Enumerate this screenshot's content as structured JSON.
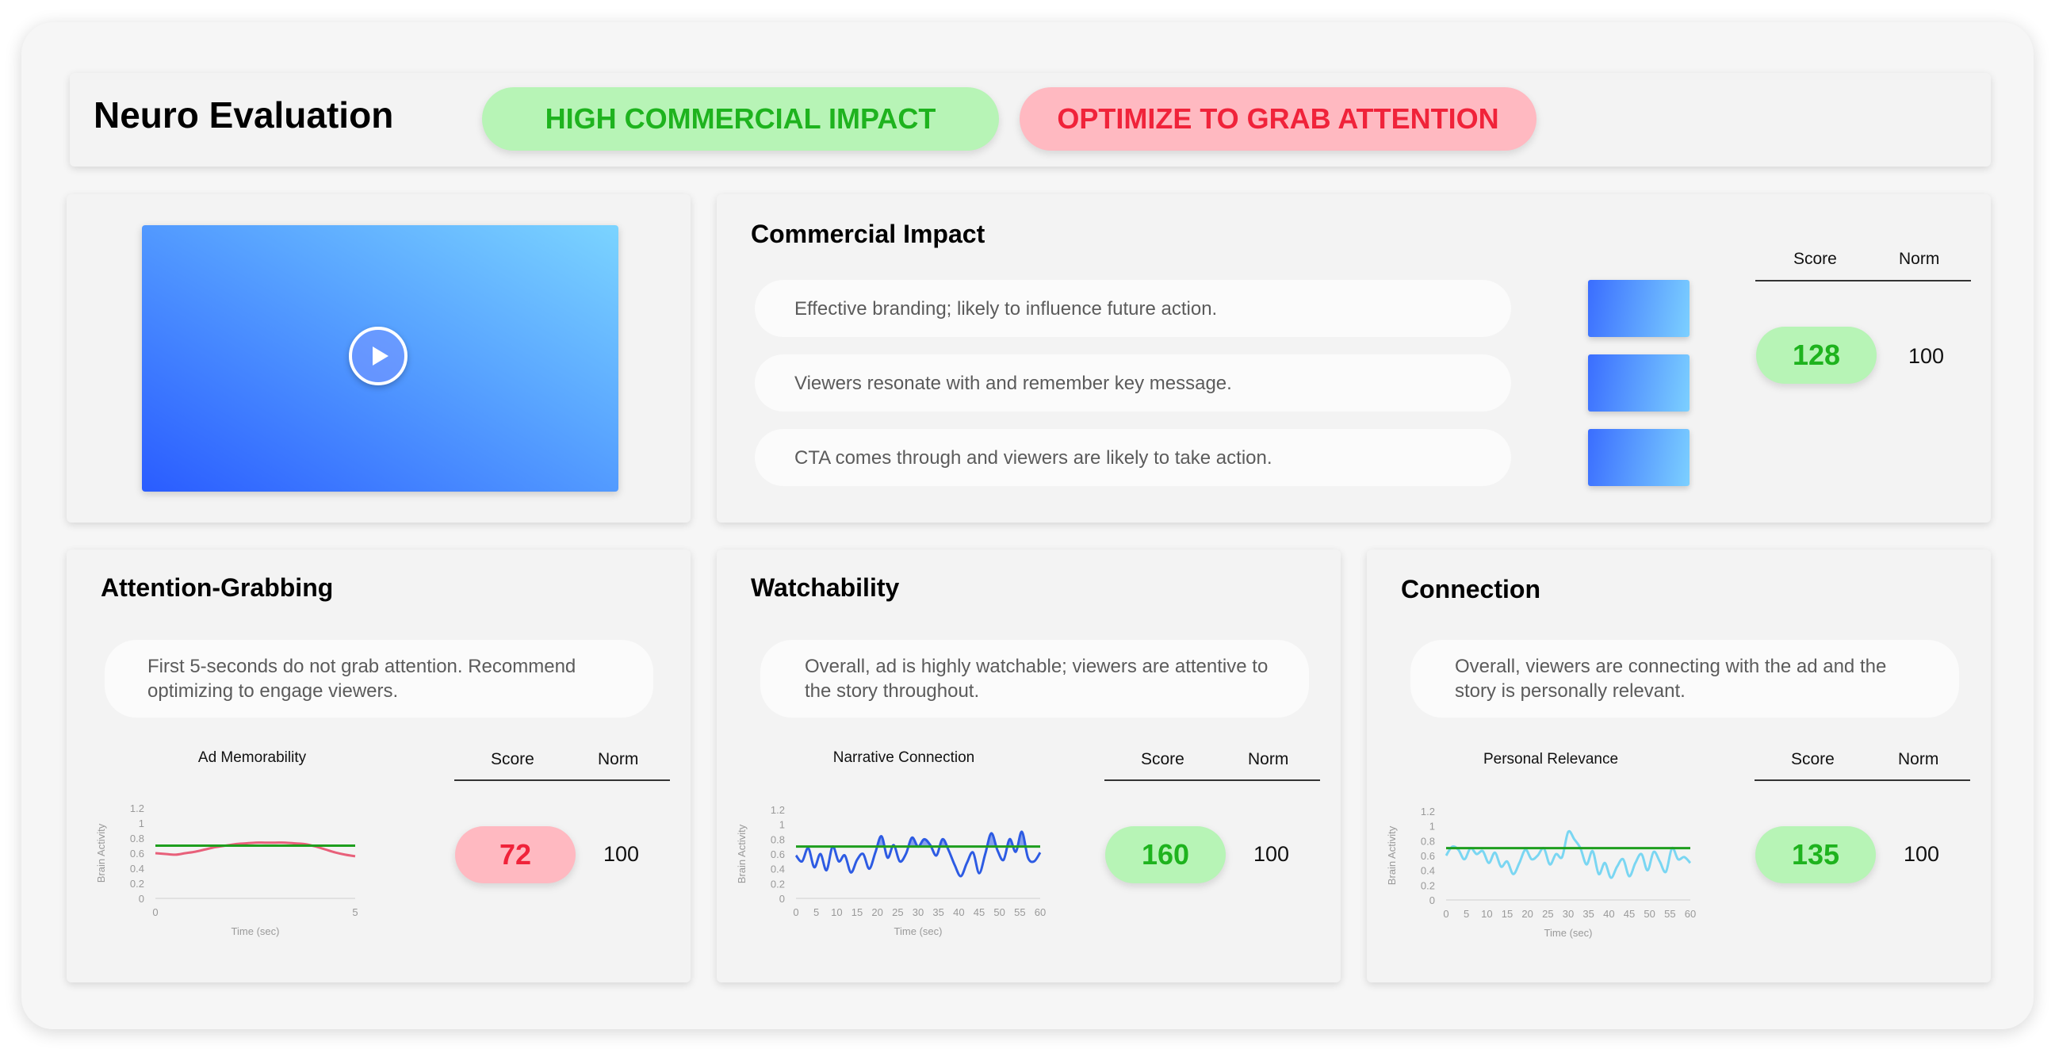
{
  "header": {
    "title": "Neuro Evaluation",
    "badges": [
      {
        "label": "HIGH COMMERCIAL IMPACT",
        "tone": "positive",
        "color": "#1eb31e"
      },
      {
        "label": "OPTIMIZE TO GRAB ATTENTION",
        "tone": "negative",
        "color": "#f0233a"
      }
    ]
  },
  "video": {
    "icon": "play-icon"
  },
  "commercial": {
    "title": "Commercial Impact",
    "items": [
      "Effective branding; likely to influence future action.",
      "Viewers resonate with and remember key message.",
      "CTA comes through and viewers are likely to take action."
    ],
    "score_label": "Score",
    "norm_label": "Norm",
    "score": "128",
    "norm": "100"
  },
  "panels": [
    {
      "title": "Attention-Grabbing",
      "description": "First 5-seconds do not grab attention. Recommend optimizing to engage viewers.",
      "score_label": "Score",
      "norm_label": "Norm",
      "score": "72",
      "norm": "100",
      "tone": "negative"
    },
    {
      "title": "Watchability",
      "description": "Overall, ad is highly watchable; viewers are attentive to the story throughout.",
      "score_label": "Score",
      "norm_label": "Norm",
      "score": "160",
      "norm": "100",
      "tone": "positive"
    },
    {
      "title": "Connection",
      "description": "Overall, viewers are connecting with the ad and the story is personally relevant.",
      "score_label": "Score",
      "norm_label": "Norm",
      "score": "135",
      "norm": "100",
      "tone": "positive"
    }
  ],
  "colors": {
    "positive_bg": "#b7f4b6",
    "positive_text": "#1eb31e",
    "negative_bg": "#ffb9c1",
    "negative_text": "#f0233a",
    "norm_line": "#1e9e1e",
    "memorability_line": "#e8607a",
    "narrative_line": "#2d5be3",
    "relevance_line": "#7ad6f2"
  },
  "chart_data": [
    {
      "type": "line",
      "title": "Ad Memorability",
      "xlabel": "Time (sec)",
      "ylabel": "Brain Activity",
      "xlim": [
        0,
        5
      ],
      "ylim": [
        0,
        1.2
      ],
      "xticks": [
        "0",
        "5"
      ],
      "yticks": [
        "0",
        "0.2",
        "0.4",
        "0.6",
        "0.8",
        "1",
        "1.2"
      ],
      "series": [
        {
          "x": [
            0,
            0.25,
            0.5,
            0.75,
            1,
            1.25,
            1.5,
            1.75,
            2,
            2.25,
            2.5,
            2.75,
            3,
            3.25,
            3.5,
            3.75,
            4,
            4.25,
            4.5,
            4.75,
            5
          ],
          "y": [
            0.6,
            0.59,
            0.58,
            0.6,
            0.62,
            0.65,
            0.68,
            0.7,
            0.72,
            0.73,
            0.74,
            0.74,
            0.74,
            0.74,
            0.73,
            0.72,
            0.69,
            0.65,
            0.61,
            0.58,
            0.56
          ]
        }
      ],
      "norm": 0.7
    },
    {
      "type": "line",
      "title": "Narrative Connection",
      "xlabel": "Time (sec)",
      "ylabel": "Brain Activity",
      "xlim": [
        0,
        60
      ],
      "ylim": [
        0,
        1.2
      ],
      "xticks": [
        "0",
        "5",
        "10",
        "15",
        "20",
        "25",
        "30",
        "35",
        "40",
        "45",
        "50",
        "55",
        "60"
      ],
      "yticks": [
        "0",
        "0.2",
        "0.4",
        "0.6",
        "0.8",
        "1",
        "1.2"
      ],
      "series": [
        {
          "x": [
            0,
            1.5,
            3,
            4.5,
            6,
            7.5,
            9,
            10.5,
            12,
            13.5,
            15,
            16.5,
            18,
            19.5,
            21,
            22.5,
            24,
            25.5,
            27,
            28.5,
            30,
            31.5,
            33,
            34.5,
            36,
            37.5,
            39,
            40.5,
            42,
            43.5,
            45,
            46.5,
            48,
            49.5,
            51,
            52.5,
            54,
            55.5,
            57,
            58.5,
            60
          ],
          "y": [
            0.58,
            0.5,
            0.68,
            0.42,
            0.6,
            0.38,
            0.7,
            0.5,
            0.58,
            0.35,
            0.52,
            0.6,
            0.4,
            0.62,
            0.84,
            0.55,
            0.72,
            0.5,
            0.6,
            0.82,
            0.7,
            0.8,
            0.72,
            0.58,
            0.8,
            0.65,
            0.45,
            0.3,
            0.48,
            0.62,
            0.34,
            0.6,
            0.88,
            0.65,
            0.52,
            0.8,
            0.63,
            0.9,
            0.55,
            0.5,
            0.62
          ]
        }
      ],
      "norm": 0.7
    },
    {
      "type": "line",
      "title": "Personal Relevance",
      "xlabel": "Time (sec)",
      "ylabel": "Brain Activity",
      "xlim": [
        0,
        60
      ],
      "ylim": [
        0,
        1.2
      ],
      "xticks": [
        "0",
        "5",
        "10",
        "15",
        "20",
        "25",
        "30",
        "35",
        "40",
        "45",
        "50",
        "55",
        "60"
      ],
      "yticks": [
        "0",
        "0.2",
        "0.4",
        "0.6",
        "0.8",
        "1",
        "1.2"
      ],
      "series": [
        {
          "x": [
            0,
            1.5,
            3,
            4.5,
            6,
            7.5,
            9,
            10.5,
            12,
            13.5,
            15,
            16.5,
            18,
            19.5,
            21,
            22.5,
            24,
            25.5,
            27,
            28.5,
            30,
            31.5,
            33,
            34.5,
            36,
            37.5,
            39,
            40.5,
            42,
            43.5,
            45,
            46.5,
            48,
            49.5,
            51,
            52.5,
            54,
            55.5,
            57,
            58.5,
            60
          ],
          "y": [
            0.6,
            0.72,
            0.68,
            0.55,
            0.7,
            0.62,
            0.66,
            0.5,
            0.64,
            0.45,
            0.52,
            0.35,
            0.5,
            0.68,
            0.55,
            0.6,
            0.7,
            0.48,
            0.62,
            0.58,
            0.92,
            0.82,
            0.7,
            0.48,
            0.66,
            0.35,
            0.5,
            0.3,
            0.45,
            0.55,
            0.32,
            0.5,
            0.62,
            0.4,
            0.65,
            0.52,
            0.38,
            0.7,
            0.55,
            0.58,
            0.5
          ]
        }
      ],
      "norm": 0.7
    }
  ]
}
